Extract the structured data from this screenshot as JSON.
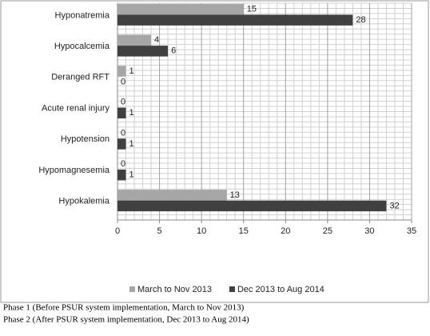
{
  "chart_data": {
    "type": "hbar",
    "categories": [
      "Hyponatremia",
      "Hypocalcemia",
      "Deranged RFT",
      "Acute renal injury",
      "Hypotension",
      "Hypomagnesemia",
      "Hypokalemia"
    ],
    "series": [
      {
        "name": "March to Nov 2013",
        "color": "#a6a6a6",
        "values": [
          15,
          4,
          1,
          0,
          0,
          0,
          13
        ]
      },
      {
        "name": "Dec 2013 to Aug 2014",
        "color": "#404040",
        "values": [
          28,
          6,
          0,
          1,
          1,
          1,
          32
        ]
      }
    ],
    "xlim": [
      0,
      35
    ],
    "xticks": [
      0,
      5,
      10,
      15,
      20,
      25,
      30,
      35
    ],
    "grid": true,
    "legend": "bottom"
  },
  "caption": [
    "Phase 1 (Before PSUR system implementation, March to Nov 2013)",
    "Phase 2 (After PSUR system implementation, Dec 2013 to Aug 2014)"
  ]
}
